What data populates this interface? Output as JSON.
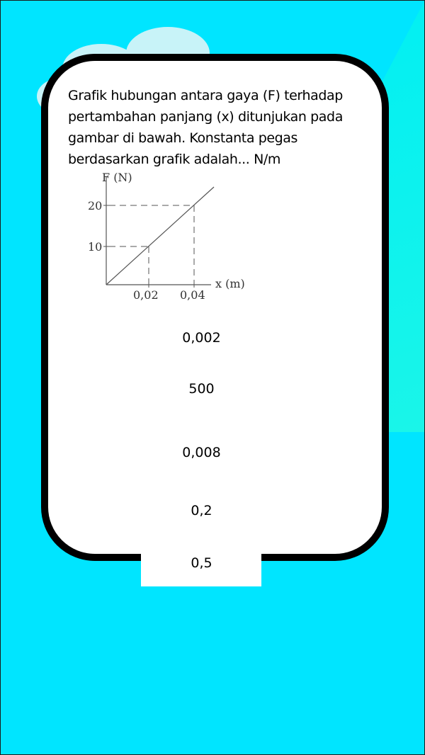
{
  "question": {
    "text": "Grafik hubungan antara gaya (F) terhadap pertambahan panjang (x) ditunjukan pada gambar di bawah. Konstanta pegas berdasarkan grafik adalah... N/m"
  },
  "graph": {
    "y_label": "F (N)",
    "x_label": "x (m)",
    "y_ticks": [
      "20",
      "10"
    ],
    "x_ticks": [
      "0,02",
      "0,04"
    ],
    "points": [
      {
        "x": 0.02,
        "y": 10
      },
      {
        "x": 0.04,
        "y": 20
      }
    ]
  },
  "options": [
    {
      "label": "0,002"
    },
    {
      "label": "500"
    },
    {
      "label": "0,008"
    },
    {
      "label": "0,2"
    },
    {
      "label": "0,5"
    }
  ],
  "colors": {
    "background": "#00e5ff",
    "card": "#ffffff",
    "card_border": "#000000",
    "graph_line": "#555555"
  }
}
